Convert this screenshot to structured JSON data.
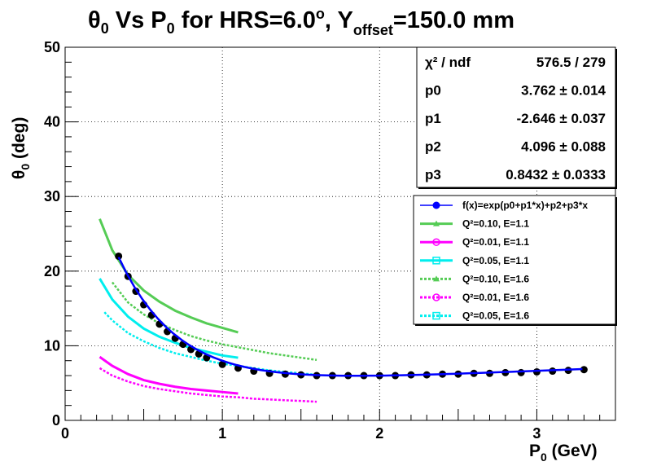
{
  "chart_data": {
    "type": "scatter",
    "title": {
      "parts": [
        "θ",
        "0",
        " Vs P",
        "0",
        " for HRS=6.0",
        "o",
        ", Y",
        "offset",
        "=150.0 mm"
      ]
    },
    "xlabel": {
      "main": "P",
      "sub": "0",
      "rest": " (GeV)"
    },
    "ylabel": {
      "main": "θ",
      "sub": "0",
      "rest": " (deg)"
    },
    "xlim": [
      0,
      3.5
    ],
    "ylim": [
      0,
      50
    ],
    "x_ticks": [
      0,
      1,
      2,
      3
    ],
    "y_ticks": [
      0,
      10,
      20,
      30,
      40,
      50
    ],
    "grid": true,
    "stats_box": [
      {
        "name": "χ² / ndf",
        "value": "576.5 / 279"
      },
      {
        "name": "p0",
        "value": "3.762 ± 0.014"
      },
      {
        "name": "p1",
        "value": "-2.646 ± 0.037"
      },
      {
        "name": "p2",
        "value": "4.096 ± 0.088"
      },
      {
        "name": "p3",
        "value": "0.8432 ± 0.0333"
      }
    ],
    "legend_position": "right",
    "series": [
      {
        "name": "f(x)=exp(p0+p1*x)+p2+p3*x",
        "kind": "data+fit",
        "color": "#0000ff",
        "marker_color": "#000000",
        "fit": {
          "p0": 3.762,
          "p1": -2.646,
          "p2": 4.096,
          "p3": 0.8432
        },
        "x": [
          0.34,
          0.4,
          0.45,
          0.5,
          0.55,
          0.6,
          0.65,
          0.7,
          0.75,
          0.8,
          0.85,
          0.9,
          1.0,
          1.1,
          1.2,
          1.3,
          1.4,
          1.5,
          1.6,
          1.7,
          1.8,
          1.9,
          2.0,
          2.1,
          2.2,
          2.3,
          2.4,
          2.5,
          2.6,
          2.7,
          2.8,
          2.9,
          3.0,
          3.1,
          3.2,
          3.3
        ],
        "y": [
          22.0,
          19.3,
          17.3,
          15.5,
          14.1,
          12.9,
          11.9,
          11.0,
          10.2,
          9.5,
          8.9,
          8.4,
          7.5,
          7.0,
          6.6,
          6.3,
          6.2,
          6.1,
          6.0,
          6.0,
          6.0,
          6.0,
          6.0,
          6.0,
          6.1,
          6.1,
          6.2,
          6.2,
          6.3,
          6.3,
          6.4,
          6.4,
          6.5,
          6.6,
          6.7,
          6.8
        ]
      },
      {
        "name": "Q²=0.10, E=1.1",
        "color": "#55cc55",
        "dashed": false,
        "x": [
          0.22,
          0.3,
          0.4,
          0.5,
          0.6,
          0.7,
          0.8,
          0.9,
          1.0,
          1.1
        ],
        "y": [
          27.0,
          22.8,
          19.5,
          17.4,
          15.9,
          14.7,
          13.8,
          13.0,
          12.4,
          11.8
        ]
      },
      {
        "name": "Q²=0.01, E=1.1",
        "color": "#ff00ff",
        "dashed": false,
        "x": [
          0.22,
          0.3,
          0.4,
          0.5,
          0.6,
          0.7,
          0.8,
          0.9,
          1.0,
          1.1
        ],
        "y": [
          8.5,
          7.3,
          6.2,
          5.4,
          4.9,
          4.5,
          4.2,
          4.0,
          3.8,
          3.6
        ]
      },
      {
        "name": "Q²=0.05, E=1.1",
        "color": "#00eeee",
        "dashed": false,
        "x": [
          0.22,
          0.3,
          0.4,
          0.5,
          0.6,
          0.7,
          0.8,
          0.9,
          1.0,
          1.1
        ],
        "y": [
          19.0,
          16.2,
          13.9,
          12.3,
          11.2,
          10.4,
          9.7,
          9.2,
          8.7,
          8.4
        ]
      },
      {
        "name": "Q²=0.10, E=1.6",
        "color": "#55cc55",
        "dashed": true,
        "x": [
          0.3,
          0.4,
          0.5,
          0.6,
          0.7,
          0.8,
          0.9,
          1.0,
          1.1,
          1.2,
          1.3,
          1.4,
          1.5,
          1.6
        ],
        "y": [
          18.5,
          15.8,
          14.2,
          13.0,
          12.1,
          11.3,
          10.7,
          10.2,
          9.8,
          9.4,
          9.0,
          8.7,
          8.4,
          8.1
        ]
      },
      {
        "name": "Q²=0.01, E=1.6",
        "color": "#ff00ff",
        "dashed": true,
        "x": [
          0.22,
          0.3,
          0.4,
          0.5,
          0.6,
          0.7,
          0.8,
          0.9,
          1.0,
          1.1,
          1.2,
          1.3,
          1.4,
          1.5,
          1.6
        ],
        "y": [
          7.0,
          6.0,
          5.2,
          4.6,
          4.2,
          3.9,
          3.6,
          3.4,
          3.2,
          3.1,
          2.9,
          2.8,
          2.7,
          2.6,
          2.5
        ]
      },
      {
        "name": "Q²=0.05, E=1.6",
        "color": "#00eeee",
        "dashed": true,
        "x": [
          0.25,
          0.3,
          0.4,
          0.5,
          0.6,
          0.7,
          0.8,
          0.9,
          1.0,
          1.1,
          1.2,
          1.3,
          1.4,
          1.5,
          1.6
        ],
        "y": [
          14.5,
          13.4,
          11.7,
          10.6,
          9.7,
          9.0,
          8.5,
          8.0,
          7.6,
          7.3,
          7.0,
          6.7,
          6.5,
          6.3,
          6.1
        ]
      }
    ]
  }
}
